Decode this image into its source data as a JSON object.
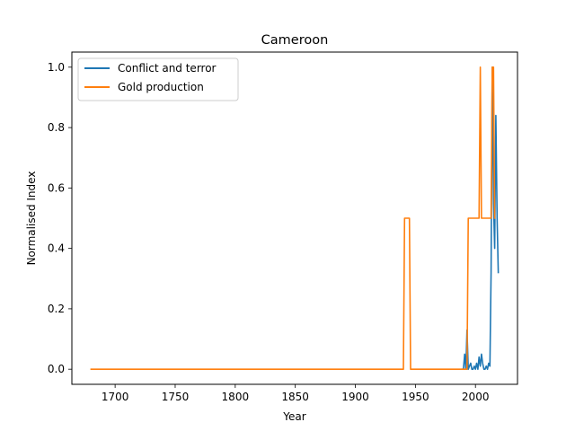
{
  "chart_data": {
    "type": "line",
    "title": "Cameroon",
    "xlabel": "Year",
    "ylabel": "Normalised Index",
    "xlim": [
      1664,
      2035
    ],
    "ylim": [
      -0.05,
      1.05
    ],
    "xticks": [
      1700,
      1750,
      1800,
      1850,
      1900,
      1950,
      2000
    ],
    "yticks": [
      0.0,
      0.2,
      0.4,
      0.6,
      0.8,
      1.0
    ],
    "xtick_labels": [
      "1700",
      "1750",
      "1800",
      "1850",
      "1900",
      "1950",
      "2000"
    ],
    "ytick_labels": [
      "0.0",
      "0.2",
      "0.4",
      "0.6",
      "0.8",
      "1.0"
    ],
    "grid": false,
    "legend_position": "upper left",
    "series": [
      {
        "name": "Conflict and terror",
        "color": "#1f77b4",
        "x": [
          1989,
          1990,
          1991,
          1992,
          1993,
          1994,
          1995,
          1996,
          1997,
          1998,
          1999,
          2000,
          2001,
          2002,
          2003,
          2004,
          2005,
          2006,
          2007,
          2008,
          2009,
          2010,
          2011,
          2012,
          2013,
          2014,
          2015,
          2016,
          2017,
          2018,
          2019
        ],
        "y": [
          0.0,
          0.0,
          0.05,
          0.0,
          0.13,
          0.0,
          0.01,
          0.02,
          0.0,
          0.0,
          0.01,
          0.0,
          0.02,
          0.0,
          0.04,
          0.01,
          0.05,
          0.02,
          0.0,
          0.0,
          0.01,
          0.0,
          0.02,
          0.01,
          0.32,
          1.0,
          0.55,
          0.4,
          0.84,
          0.5,
          0.32
        ]
      },
      {
        "name": "Gold production",
        "color": "#ff7f0e",
        "x": [
          1680,
          1940,
          1941,
          1945,
          1946,
          1993,
          1994,
          2003,
          2004,
          2005,
          2013,
          2014,
          2015,
          2016
        ],
        "y": [
          0.0,
          0.0,
          0.5,
          0.5,
          0.0,
          0.0,
          0.5,
          0.5,
          1.0,
          0.5,
          0.5,
          1.0,
          1.0,
          0.5
        ]
      }
    ]
  }
}
